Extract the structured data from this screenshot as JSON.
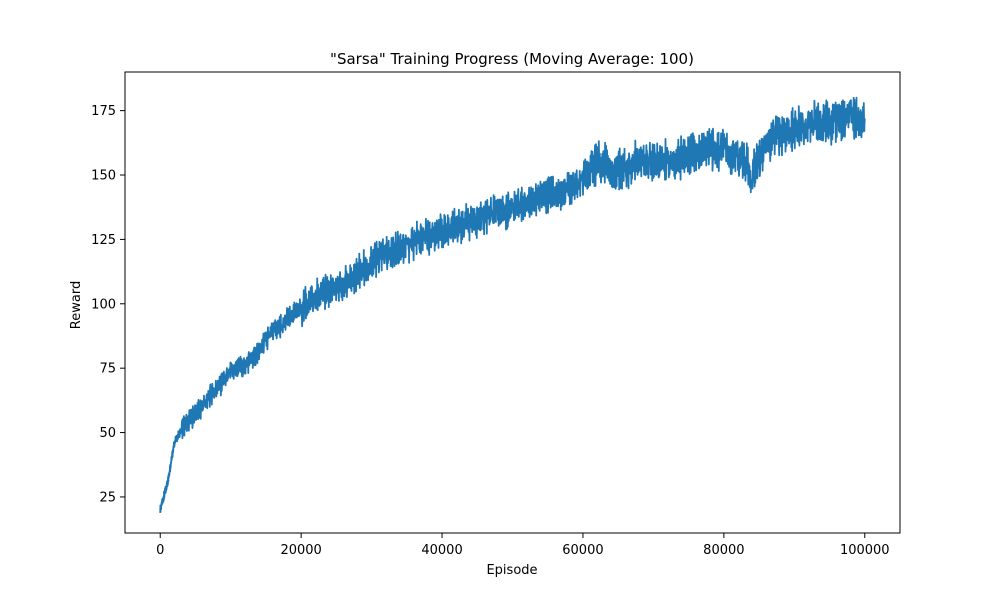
{
  "chart_data": {
    "type": "line",
    "title": "\"Sarsa\" Training Progress (Moving Average: 100)",
    "xlabel": "Episode",
    "ylabel": "Reward",
    "xlim": [
      -5000,
      105000
    ],
    "ylim": [
      11,
      190
    ],
    "xticks": [
      0,
      20000,
      40000,
      60000,
      80000,
      100000
    ],
    "xtick_labels": [
      "0",
      "20000",
      "40000",
      "60000",
      "80000",
      "100000"
    ],
    "yticks": [
      25,
      50,
      75,
      100,
      125,
      150,
      175
    ],
    "ytick_labels": [
      "25",
      "50",
      "75",
      "100",
      "125",
      "150",
      "175"
    ],
    "grid": false,
    "series": [
      {
        "color": "#1f77b4",
        "x": [
          0,
          500,
          1000,
          1500,
          2000,
          3000,
          4000,
          5000,
          6000,
          7000,
          8000,
          9000,
          10000,
          11000,
          12000,
          13000,
          14000,
          15000,
          16000,
          17000,
          18000,
          19000,
          20000,
          21000,
          22000,
          23000,
          24000,
          25000,
          26000,
          27000,
          28000,
          29000,
          30000,
          31000,
          32000,
          33000,
          34000,
          35000,
          36000,
          37000,
          38000,
          39000,
          40000,
          41000,
          42000,
          43000,
          44000,
          45000,
          46000,
          47000,
          48000,
          49000,
          50000,
          51000,
          52000,
          53000,
          54000,
          55000,
          56000,
          57000,
          58000,
          59000,
          60000,
          61000,
          62000,
          63000,
          64000,
          65000,
          66000,
          67000,
          68000,
          69000,
          70000,
          71000,
          72000,
          73000,
          74000,
          75000,
          76000,
          77000,
          78000,
          79000,
          80000,
          81000,
          82000,
          83000,
          84000,
          85000,
          86000,
          87000,
          88000,
          89000,
          90000,
          91000,
          92000,
          93000,
          94000,
          95000,
          96000,
          97000,
          98000,
          99000,
          100000
        ],
        "y": [
          20,
          25,
          30,
          38,
          46,
          51,
          55,
          57,
          60,
          64,
          67,
          70,
          73,
          75,
          76,
          79,
          82,
          86,
          89,
          91,
          94,
          96,
          98,
          100,
          102,
          104,
          105,
          107,
          108,
          109,
          112,
          114,
          116,
          118,
          119,
          120,
          122,
          123,
          124,
          125,
          126,
          127,
          128,
          129,
          130,
          131,
          132,
          133,
          134,
          135,
          136,
          136,
          137,
          139,
          140,
          141,
          142,
          142,
          143,
          144,
          145,
          145,
          148,
          152,
          155,
          154,
          153,
          152,
          153,
          154,
          155,
          156,
          154,
          155,
          156,
          155,
          157,
          158,
          158,
          159,
          160,
          159,
          162,
          158,
          157,
          155,
          150,
          155,
          162,
          165,
          166,
          167,
          168,
          169,
          170,
          172,
          171,
          170,
          171,
          172,
          173,
          171,
          172
        ]
      }
    ]
  }
}
